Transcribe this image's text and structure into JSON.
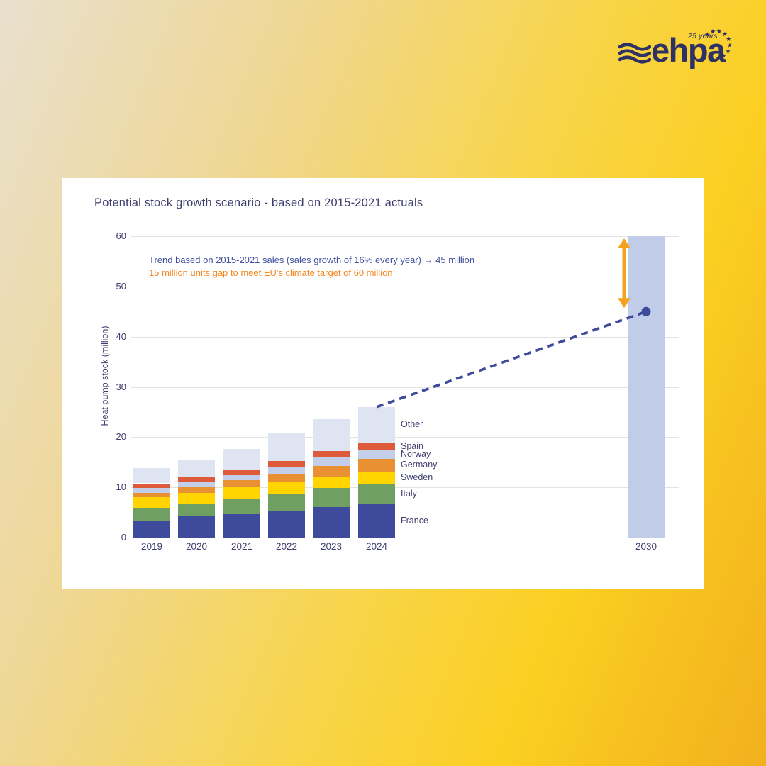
{
  "logo": {
    "wordmark": "ehpa",
    "tagline": "25 years",
    "color": "#2e3164"
  },
  "text_colors": {
    "navy": "#3f3e6e"
  },
  "chart_data": {
    "type": "stacked-bar",
    "title": "Potential stock growth scenario - based on 2015-2021 actuals",
    "ylabel": "Heat pump stock (million)",
    "ylim": [
      0,
      60
    ],
    "yticks": [
      0,
      10,
      20,
      30,
      40,
      50,
      60
    ],
    "grid": "horizontal",
    "categories": [
      "2019",
      "2020",
      "2021",
      "2022",
      "2023",
      "2024"
    ],
    "series": [
      {
        "name": "France",
        "color": "#3e4b9d",
        "values": [
          3.4,
          4.3,
          4.7,
          5.3,
          6.1,
          6.6
        ]
      },
      {
        "name": "Italy",
        "color": "#6f9f63",
        "values": [
          2.5,
          2.3,
          3.1,
          3.5,
          3.8,
          4.1
        ]
      },
      {
        "name": "Sweden",
        "color": "#ffd400",
        "values": [
          2.1,
          2.3,
          2.3,
          2.4,
          2.3,
          2.4
        ]
      },
      {
        "name": "Germany",
        "color": "#e99132",
        "values": [
          0.9,
          1.2,
          1.3,
          1.4,
          2.1,
          2.6
        ]
      },
      {
        "name": "Norway",
        "color": "#c3cee9",
        "values": [
          1.0,
          1.1,
          1.0,
          1.4,
          1.6,
          1.6
        ]
      },
      {
        "name": "Spain",
        "color": "#dd5b3a",
        "values": [
          0.9,
          1.0,
          1.2,
          1.3,
          1.3,
          1.5
        ]
      },
      {
        "name": "Other",
        "color": "#dfe4f3",
        "values": [
          3.1,
          3.4,
          4.1,
          5.4,
          6.4,
          7.2
        ]
      }
    ],
    "totals": [
      13.9,
      15.6,
      17.7,
      20.7,
      23.6,
      26.0
    ],
    "target_bar": {
      "category": "2030",
      "value": 60,
      "color": "#c1cce9"
    },
    "trend": {
      "from_category": "2024",
      "end_value": 45,
      "line_color": "#3e4b9d"
    },
    "gap_arrow": {
      "from": 60,
      "to": 45,
      "color": "#f5a11d"
    },
    "annotations": [
      {
        "text": "Trend based on 2015-2021 sales (sales growth of 16% every year) → 45 million",
        "color": "#4150a0"
      },
      {
        "text": "15 million units gap to meet EU's climate target of 60 million",
        "color": "#f5861f"
      }
    ],
    "legend_position": "right-of-last-bar"
  }
}
